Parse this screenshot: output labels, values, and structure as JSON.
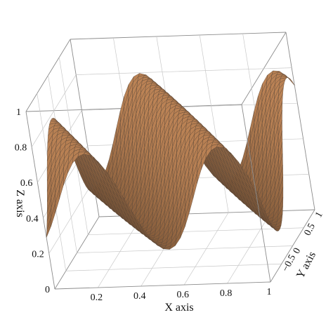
{
  "chart_data": {
    "type": "surface",
    "title": "",
    "xlabel": "X axis",
    "ylabel": "Y axis",
    "zlabel": "Z axis",
    "xlim": [
      0,
      1
    ],
    "ylim": [
      -1,
      1
    ],
    "zlim": [
      0,
      1
    ],
    "x_ticks": [
      "0.2",
      "0.4",
      "0.6",
      "0.8",
      "1"
    ],
    "y_ticks": [
      "-0.5",
      "0",
      "0.5",
      "1"
    ],
    "z_ticks": [
      "0",
      "0.2",
      "0.4",
      "0.6",
      "0.8",
      "1"
    ],
    "surface": {
      "description_free": true,
      "peaks": 2,
      "mesh_color": "#f2b07a",
      "mesh_edge": "#5a4030"
    },
    "grid": true,
    "box": true
  }
}
